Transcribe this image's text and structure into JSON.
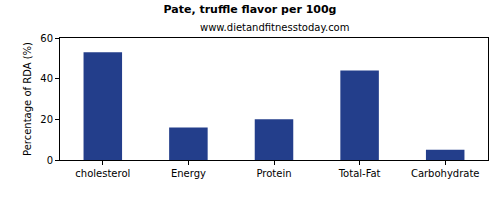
{
  "chart_data": {
    "type": "bar",
    "title": "Pate, truffle flavor per 100g",
    "subtitle": "www.dietandfitnesstoday.com",
    "y_label": "Percentage of RDA (%)",
    "categories": [
      "cholesterol",
      "Energy",
      "Protein",
      "Total-Fat",
      "Carbohydrate"
    ],
    "values": [
      53,
      16,
      20,
      44,
      5
    ],
    "color": "#233e8b",
    "ylim": [
      0,
      60
    ],
    "yticks": [
      0,
      20,
      40,
      60
    ],
    "grid": false
  }
}
